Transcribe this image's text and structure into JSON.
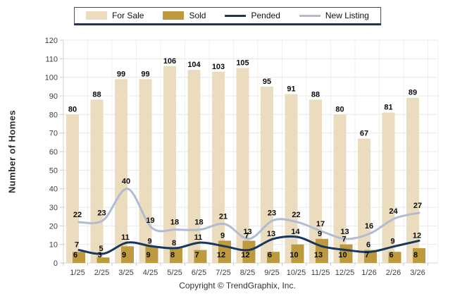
{
  "chart_data": {
    "type": "bar",
    "categories": [
      "1/25",
      "2/25",
      "3/25",
      "4/25",
      "5/25",
      "6/25",
      "7/25",
      "8/25",
      "9/25",
      "10/25",
      "11/25",
      "12/25",
      "1/26",
      "2/26",
      "3/26"
    ],
    "series": [
      {
        "name": "For Sale",
        "kind": "bar",
        "color": "#EBDCBE",
        "values": [
          80,
          88,
          99,
          99,
          106,
          104,
          103,
          105,
          95,
          91,
          88,
          80,
          67,
          81,
          89
        ]
      },
      {
        "name": "Sold",
        "kind": "bar",
        "color": "#BD9A3D",
        "values": [
          6,
          3,
          9,
          9,
          8,
          7,
          12,
          12,
          6,
          10,
          13,
          10,
          7,
          6,
          8
        ]
      },
      {
        "name": "Pended",
        "kind": "line",
        "color": "#17375E",
        "values": [
          7,
          5,
          11,
          9,
          8,
          11,
          9,
          7,
          13,
          14,
          9,
          7,
          6,
          9,
          12
        ]
      },
      {
        "name": "New Listing",
        "kind": "line",
        "color": "#B1BBD1",
        "values": [
          22,
          23,
          40,
          19,
          18,
          18,
          21,
          13,
          23,
          22,
          17,
          13,
          16,
          24,
          27
        ]
      }
    ],
    "title": "",
    "xlabel": "",
    "ylabel": "Number of Homes",
    "ylim": [
      0,
      120
    ],
    "ytick_step": 10,
    "ytick_labels": [
      "0",
      "10",
      "20",
      "30",
      "40",
      "50",
      "60",
      "70",
      "80",
      "90",
      "100",
      "110",
      "120"
    ],
    "grid": true,
    "legend_position": "top"
  },
  "footer": {
    "copyright": "Copyright © TrendGraphix, Inc."
  },
  "colors": {
    "grid_h": "#e8e8e8",
    "grid_v": "#f0f0f0",
    "axis": "#d4d4d4",
    "tick_mark": "#c9c9c9",
    "legend_border_bottom": "#17375E",
    "label_text": "#0a0a0a"
  }
}
